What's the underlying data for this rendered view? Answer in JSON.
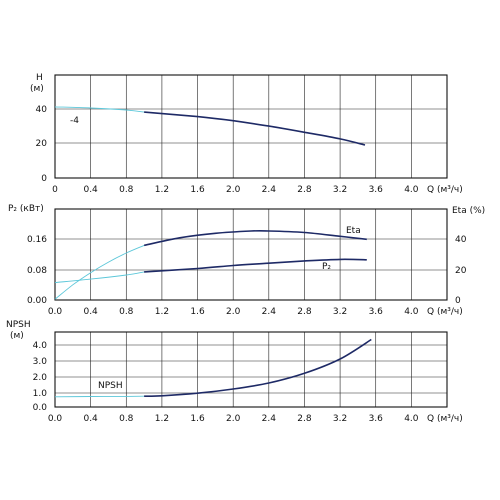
{
  "chart_data": [
    {
      "type": "line",
      "id": "head",
      "xlabel": "Q (м³/ч)",
      "ylabel": [
        "H",
        "(м)"
      ],
      "xlim": [
        0,
        4.4
      ],
      "xticks": [
        "0",
        "0.4",
        "0.8",
        "1.2",
        "1.6",
        "2.0",
        "2.4",
        "2.8",
        "3.2",
        "3.6",
        "4.0"
      ],
      "ylim": [
        0,
        50
      ],
      "yticks": [
        "0",
        "20",
        "40"
      ],
      "grid": true,
      "series": [
        {
          "name": "-4",
          "x": [
            1.0,
            1.6,
            2.0,
            2.4,
            2.8,
            3.2,
            3.48
          ],
          "y": [
            32.0,
            29.8,
            27.8,
            25.2,
            22.2,
            19.0,
            16.0
          ],
          "extension": {
            "x": [
              0.0,
              0.4,
              0.8,
              1.0
            ],
            "y": [
              34.5,
              34.0,
              33.0,
              32.0
            ]
          }
        }
      ]
    },
    {
      "type": "line",
      "id": "power-efficiency",
      "xlabel": "Q (м³/ч)",
      "ylabel": "P₂ (кВт)",
      "ylabel_right": "Eta (%)",
      "xlim": [
        0,
        4.4
      ],
      "xticks": [
        "0.0",
        "0.4",
        "0.8",
        "1.2",
        "1.6",
        "2.0",
        "2.4",
        "2.8",
        "3.2",
        "3.6",
        "4.0"
      ],
      "ylim": [
        0,
        0.24
      ],
      "yticks": [
        "0.00",
        "0.08",
        "0.16"
      ],
      "ylim_right": [
        0,
        60
      ],
      "yticks_right": [
        "0",
        "20",
        "40"
      ],
      "grid": true,
      "series": [
        {
          "name": "Eta",
          "axis": "right",
          "x": [
            1.0,
            1.4,
            1.8,
            2.2,
            2.4,
            2.8,
            3.2,
            3.5
          ],
          "y": [
            36.0,
            41.0,
            44.0,
            45.5,
            45.5,
            44.5,
            42.0,
            40.0
          ],
          "extension": {
            "x": [
              0.0,
              0.2,
              0.4,
              0.6,
              0.8,
              1.0
            ],
            "y": [
              0.5,
              10.0,
              18.0,
              25.0,
              31.0,
              36.0
            ]
          }
        },
        {
          "name": "P₂",
          "axis": "left",
          "x": [
            1.0,
            1.6,
            2.0,
            2.4,
            2.8,
            3.2,
            3.5
          ],
          "y": [
            0.074,
            0.083,
            0.091,
            0.097,
            0.103,
            0.107,
            0.106
          ],
          "extension": {
            "x": [
              0.0,
              0.4,
              0.8,
              1.0
            ],
            "y": [
              0.046,
              0.055,
              0.066,
              0.074
            ]
          }
        }
      ]
    },
    {
      "type": "line",
      "id": "npsh",
      "xlabel": "Q (м³/ч)",
      "ylabel": [
        "NPSH",
        "(м)"
      ],
      "xlim": [
        0,
        4.4
      ],
      "xticks": [
        "0.0",
        "0.4",
        "0.8",
        "1.2",
        "1.6",
        "2.0",
        "2.4",
        "2.8",
        "3.2",
        "3.6",
        "4.0"
      ],
      "ylim": [
        0,
        5
      ],
      "yticks": [
        "0.0",
        "1.0",
        "2.0",
        "3.0",
        "4.0"
      ],
      "grid": true,
      "series": [
        {
          "name": "NPSH",
          "x": [
            1.0,
            1.2,
            1.6,
            2.0,
            2.4,
            2.8,
            3.2,
            3.55
          ],
          "y": [
            0.72,
            0.75,
            0.92,
            1.2,
            1.6,
            2.25,
            3.2,
            4.5
          ],
          "extension": {
            "x": [
              0.0,
              0.4,
              0.8,
              1.0
            ],
            "y": [
              0.68,
              0.7,
              0.71,
              0.72
            ]
          }
        }
      ]
    }
  ]
}
